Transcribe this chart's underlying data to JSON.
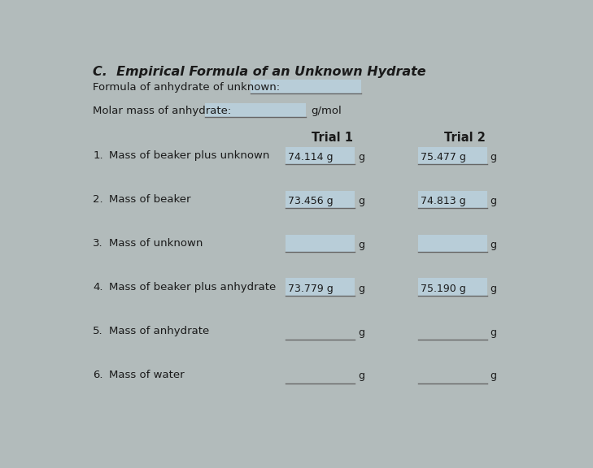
{
  "title": "C.  Empirical Formula of an Unknown Hydrate",
  "bg_color": "#b2bbbb",
  "highlight_color": "#b8cdd8",
  "highlight_color2": "#c5d5df",
  "text_color": "#1a1a1a",
  "line_color": "#666666",
  "title_fontsize": 11.5,
  "body_fontsize": 9.5,
  "small_fontsize": 9,
  "formula_label": "Formula of anhydrate of unknown:",
  "molar_mass_label": "Molar mass of anhydrate:",
  "gmol_label": "g/mol",
  "trial1_label": "Trial 1",
  "trial2_label": "Trial 2",
  "rows": [
    {
      "num": "1.",
      "label": "Mass of beaker plus unknown",
      "t1_value": "74.114 g",
      "t2_value": "75.477 g",
      "t1_has_box": true,
      "t2_has_box": true
    },
    {
      "num": "2.",
      "label": "Mass of beaker",
      "t1_value": "73.456 g",
      "t2_value": "74.813 g",
      "t1_has_box": true,
      "t2_has_box": true
    },
    {
      "num": "3.",
      "label": "Mass of unknown",
      "t1_value": "",
      "t2_value": "",
      "t1_has_box": true,
      "t2_has_box": true
    },
    {
      "num": "4.",
      "label": "Mass of beaker plus anhydrate",
      "t1_value": "73.779 g",
      "t2_value": "75.190 g",
      "t1_has_box": true,
      "t2_has_box": true
    },
    {
      "num": "5.",
      "label": "Mass of anhydrate",
      "t1_value": "",
      "t2_value": "",
      "t1_has_box": false,
      "t2_has_box": false
    },
    {
      "num": "6.",
      "label": "Mass of water",
      "t1_value": "",
      "t2_value": "",
      "t1_has_box": false,
      "t2_has_box": false
    }
  ]
}
